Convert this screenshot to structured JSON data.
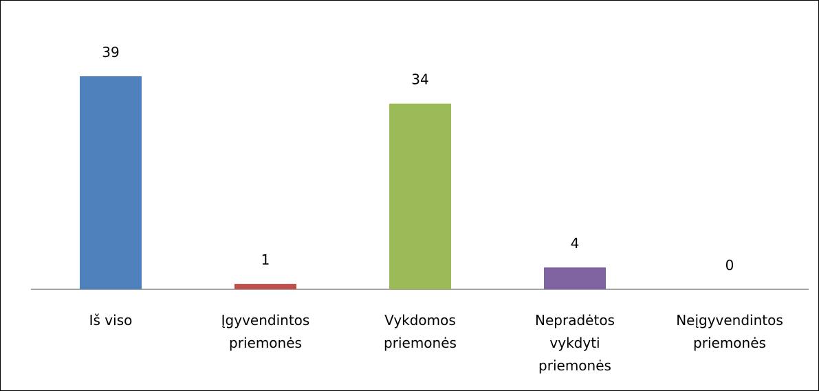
{
  "chart_data": {
    "type": "bar",
    "categories": [
      "Iš viso",
      "Įgyvendintos priemonės",
      "Vykdomos priemonės",
      "Nepradėtos vykdyti priemonės",
      "Neįgyvendintos priemonės"
    ],
    "values": [
      39,
      1,
      34,
      4,
      0
    ],
    "colors": [
      "#4f81bd",
      "#c0504d",
      "#9bbb59",
      "#8064a2",
      "#4bacc6"
    ]
  }
}
